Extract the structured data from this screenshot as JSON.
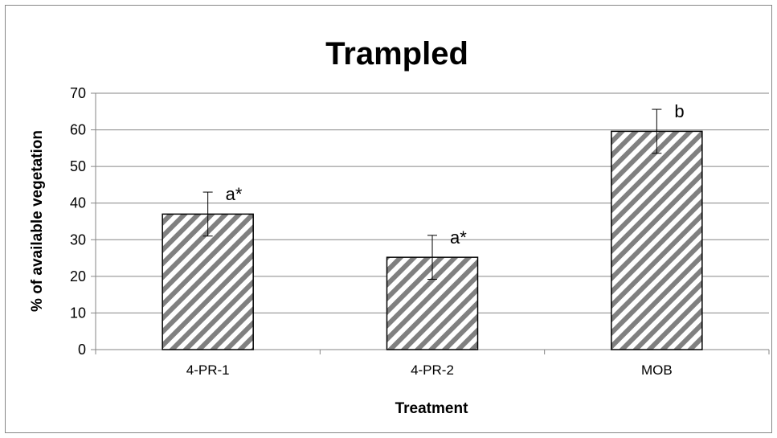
{
  "chart_data": {
    "type": "bar",
    "title": "Trampled",
    "xlabel": "Treatment",
    "ylabel": "% of available vegetation",
    "categories": [
      "4-PR-1",
      "4-PR-2",
      "MOB"
    ],
    "values": [
      37,
      25.2,
      59.6
    ],
    "error": [
      6,
      6,
      6
    ],
    "annotations": [
      "a*",
      "a*",
      "b"
    ],
    "ylim": [
      0,
      70
    ],
    "yticks": [
      "0",
      "10",
      "20",
      "30",
      "40",
      "50",
      "60",
      "70"
    ],
    "grid": true,
    "bar_pattern": "diagonal-hatch",
    "colors": {
      "hatch": "#808080",
      "bar_outline": "#000000",
      "grid": "#868686"
    }
  }
}
